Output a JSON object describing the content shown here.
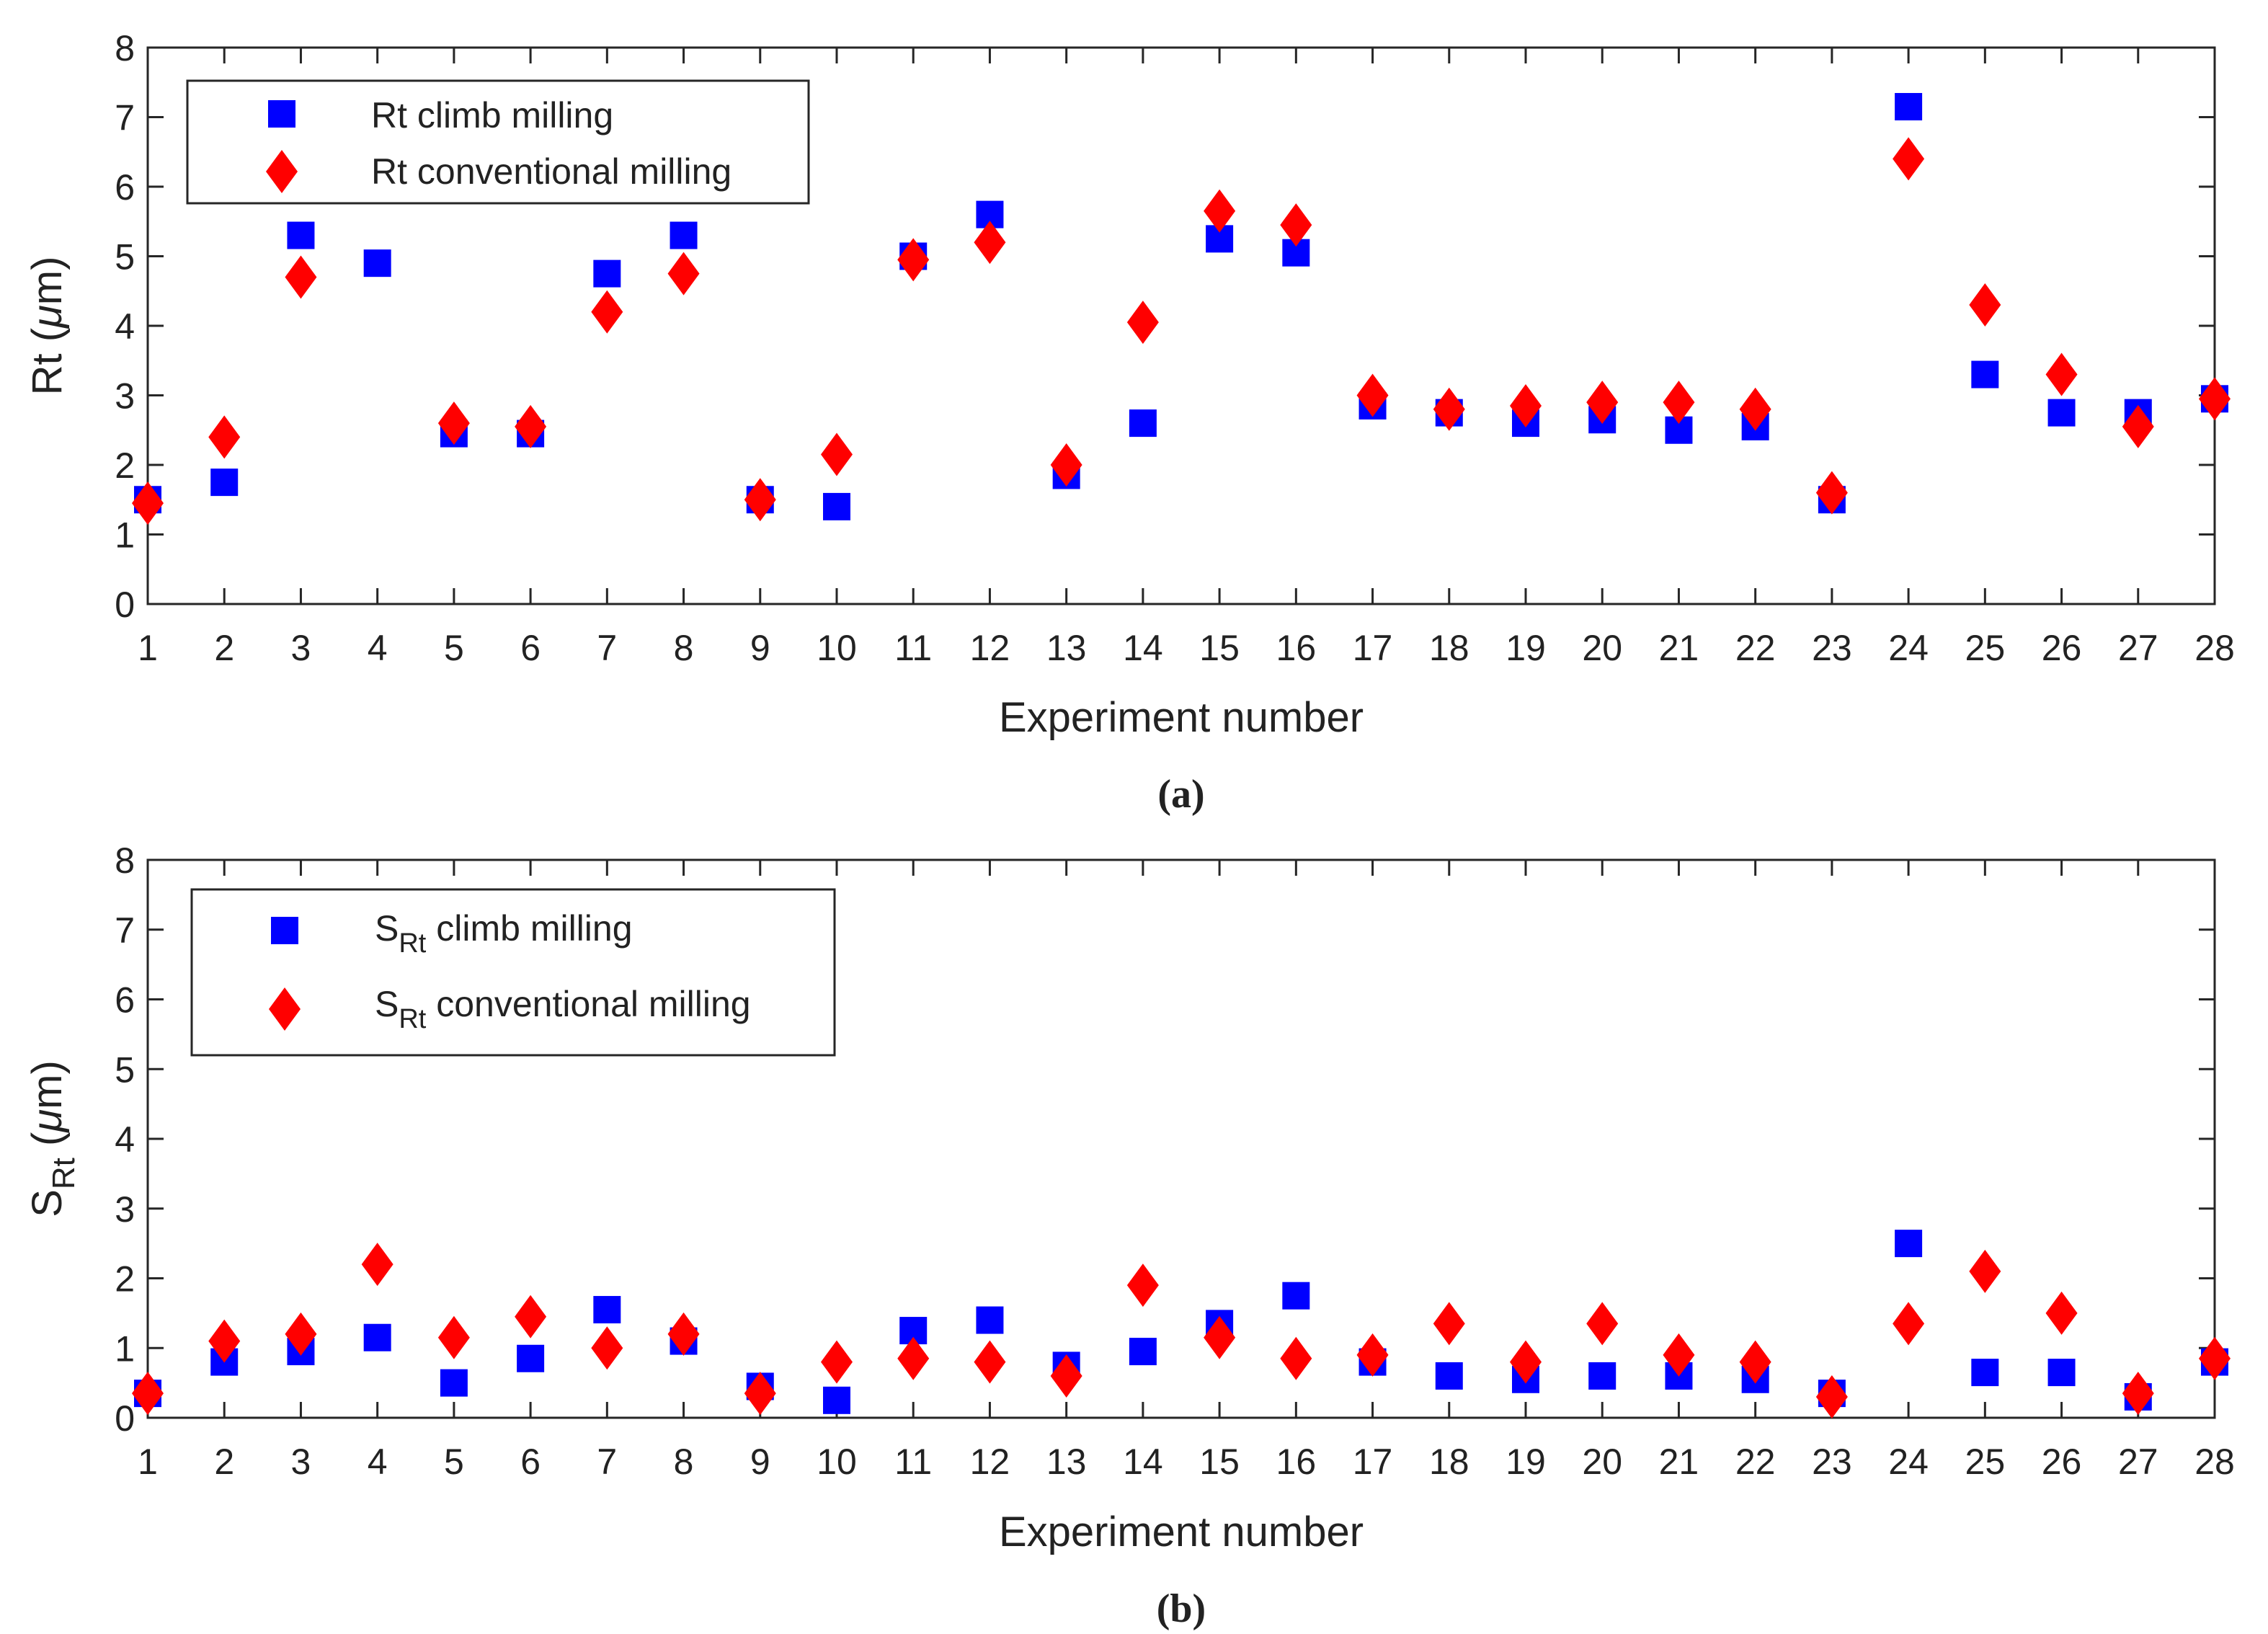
{
  "chart_data": [
    {
      "type": "scatter",
      "panel_label": "(a)",
      "ylabel_main": "Rt (",
      "ylabel_mu": "μ",
      "ylabel_unit": "m)",
      "xlabel": "Experiment number",
      "xlim": [
        1,
        28
      ],
      "ylim": [
        0,
        8
      ],
      "x_ticks": [
        1,
        2,
        3,
        4,
        5,
        6,
        7,
        8,
        9,
        10,
        11,
        12,
        13,
        14,
        15,
        16,
        17,
        18,
        19,
        20,
        21,
        22,
        23,
        24,
        25,
        26,
        27,
        28
      ],
      "y_ticks": [
        0,
        1,
        2,
        3,
        4,
        5,
        6,
        7,
        8
      ],
      "legend_position": "top-left",
      "series": [
        {
          "name": "Rt climb milling",
          "marker": "square",
          "color": "#0000ff",
          "x": [
            1,
            2,
            3,
            4,
            5,
            6,
            7,
            8,
            9,
            10,
            11,
            12,
            13,
            14,
            15,
            16,
            17,
            18,
            19,
            20,
            21,
            22,
            23,
            24,
            25,
            26,
            27,
            28
          ],
          "values": [
            1.5,
            1.75,
            5.3,
            4.9,
            2.45,
            2.45,
            4.75,
            5.3,
            1.5,
            1.4,
            5.0,
            5.6,
            1.85,
            2.6,
            5.25,
            5.05,
            2.85,
            2.75,
            2.6,
            2.65,
            2.5,
            2.55,
            1.5,
            7.15,
            3.3,
            2.75,
            2.75,
            2.95
          ]
        },
        {
          "name": "Rt conventional milling",
          "marker": "diamond",
          "color": "#ff0000",
          "x": [
            1,
            2,
            3,
            4,
            5,
            6,
            7,
            8,
            9,
            10,
            11,
            12,
            13,
            14,
            15,
            16,
            17,
            18,
            19,
            20,
            21,
            22,
            23,
            24,
            25,
            26,
            27,
            28
          ],
          "values": [
            1.45,
            2.4,
            4.7,
            null,
            2.6,
            2.55,
            4.2,
            4.75,
            1.5,
            2.15,
            4.95,
            5.2,
            2.0,
            4.05,
            5.65,
            5.45,
            3.0,
            2.8,
            2.85,
            2.9,
            2.9,
            2.8,
            1.6,
            6.4,
            4.3,
            3.3,
            2.55,
            2.95
          ]
        }
      ]
    },
    {
      "type": "scatter",
      "panel_label": "(b)",
      "ylabel_main": "S",
      "ylabel_sub": "Rt",
      "ylabel_mid": " (",
      "ylabel_mu": "μ",
      "ylabel_unit": "m)",
      "xlabel": "Experiment number",
      "xlim": [
        1,
        28
      ],
      "ylim": [
        0,
        8
      ],
      "x_ticks": [
        1,
        2,
        3,
        4,
        5,
        6,
        7,
        8,
        9,
        10,
        11,
        12,
        13,
        14,
        15,
        16,
        17,
        18,
        19,
        20,
        21,
        22,
        23,
        24,
        25,
        26,
        27,
        28
      ],
      "y_ticks": [
        0,
        1,
        2,
        3,
        4,
        5,
        6,
        7,
        8
      ],
      "legend_position": "top-left",
      "series": [
        {
          "name": "S_Rt climb milling",
          "label_main": "S",
          "label_sub": "Rt",
          "label_rest": " climb milling",
          "marker": "square",
          "color": "#0000ff",
          "x": [
            1,
            2,
            3,
            4,
            5,
            6,
            7,
            8,
            9,
            10,
            11,
            12,
            13,
            14,
            15,
            16,
            17,
            18,
            19,
            20,
            21,
            22,
            23,
            24,
            25,
            26,
            27,
            28
          ],
          "values": [
            0.35,
            0.8,
            0.95,
            1.15,
            0.5,
            0.85,
            1.55,
            1.1,
            0.45,
            0.25,
            1.25,
            1.4,
            0.75,
            0.95,
            1.35,
            1.75,
            0.8,
            0.6,
            0.55,
            0.6,
            0.6,
            0.55,
            0.35,
            2.5,
            0.65,
            0.65,
            0.3,
            0.8
          ]
        },
        {
          "name": "S_Rt conventional milling",
          "label_main": "S",
          "label_sub": "Rt",
          "label_rest": " conventional milling",
          "marker": "diamond",
          "color": "#ff0000",
          "x": [
            1,
            2,
            3,
            4,
            5,
            6,
            7,
            8,
            9,
            10,
            11,
            12,
            13,
            14,
            15,
            16,
            17,
            18,
            19,
            20,
            21,
            22,
            23,
            24,
            25,
            26,
            27,
            28
          ],
          "values": [
            0.35,
            1.1,
            1.2,
            2.2,
            1.15,
            1.45,
            1.0,
            1.2,
            0.35,
            0.8,
            0.85,
            0.8,
            0.6,
            1.9,
            1.15,
            0.85,
            0.9,
            1.35,
            0.8,
            1.35,
            0.9,
            0.8,
            0.3,
            1.35,
            2.1,
            1.5,
            0.35,
            0.85
          ]
        }
      ]
    }
  ]
}
